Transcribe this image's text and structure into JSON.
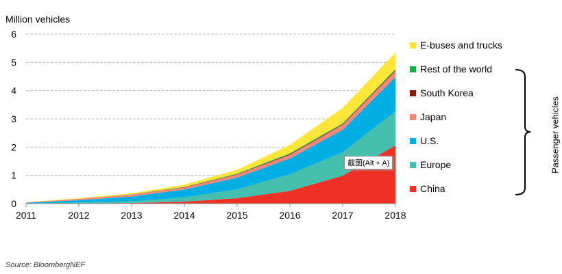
{
  "chart_data": {
    "type": "area",
    "stacked": true,
    "ylabel": "Million vehicles",
    "ylim": [
      0,
      6
    ],
    "yticks": [
      0,
      1,
      2,
      3,
      4,
      5,
      6
    ],
    "grid": true,
    "x": [
      "2011",
      "2012",
      "2013",
      "2014",
      "2015",
      "2016",
      "2017",
      "2018"
    ],
    "legend_position": "right",
    "series": [
      {
        "name": "China",
        "color": "#ee3124",
        "values": [
          0.0,
          0.01,
          0.02,
          0.07,
          0.19,
          0.45,
          0.99,
          2.06
        ]
      },
      {
        "name": "Europe",
        "color": "#45bfae",
        "values": [
          0.01,
          0.03,
          0.06,
          0.15,
          0.32,
          0.59,
          0.83,
          1.21
        ]
      },
      {
        "name": "U.S.",
        "color": "#00aee6",
        "values": [
          0.02,
          0.08,
          0.17,
          0.28,
          0.41,
          0.56,
          0.79,
          1.21
        ]
      },
      {
        "name": "Japan",
        "color": "#f4867a",
        "values": [
          0.01,
          0.05,
          0.07,
          0.07,
          0.11,
          0.13,
          0.18,
          0.22
        ]
      },
      {
        "name": "South Korea",
        "color": "#8b1a10",
        "values": [
          0,
          0,
          0,
          0.01,
          0.01,
          0.02,
          0.02,
          0.03
        ]
      },
      {
        "name": "Rest of the world",
        "color": "#1aab4a",
        "values": [
          0,
          0,
          0.01,
          0.01,
          0.02,
          0.03,
          0.03,
          0.03
        ]
      },
      {
        "name": "E-buses and trucks",
        "color": "#fde53a",
        "values": [
          0.01,
          0.02,
          0.04,
          0.08,
          0.14,
          0.3,
          0.55,
          0.59
        ]
      }
    ],
    "bracket_label": "Passenger vehicles",
    "source": "Source: BloombergNEF"
  },
  "overlay_tooltip": "截图(Alt + A)"
}
